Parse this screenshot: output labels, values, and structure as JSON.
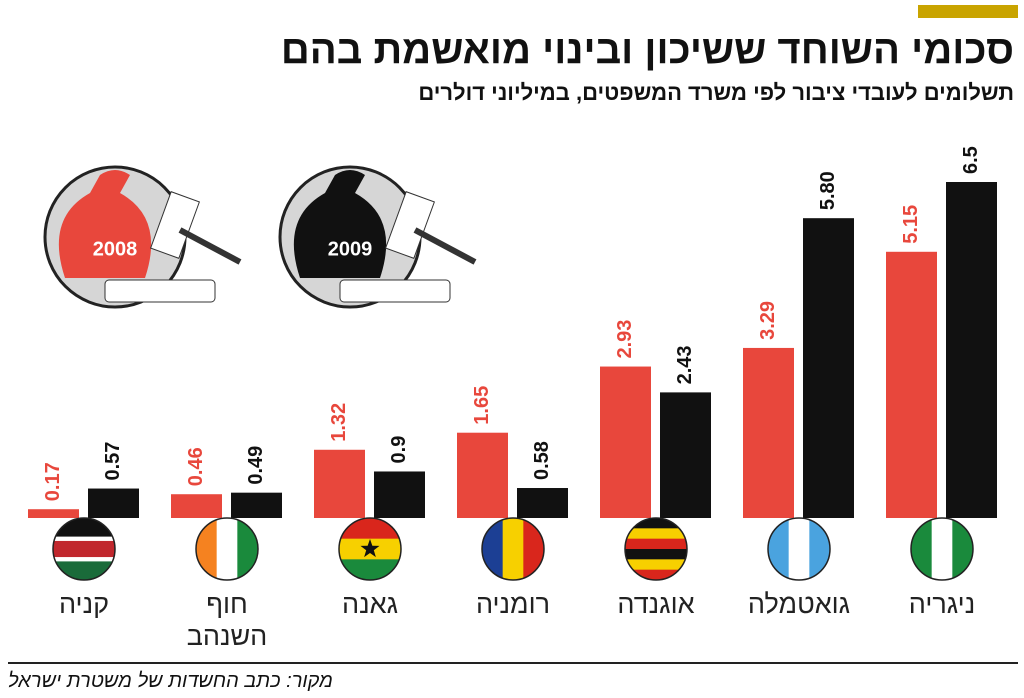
{
  "chart_data": {
    "type": "bar",
    "title": "סכומי השוחד ששיכון ובינוי מואשמת בהם",
    "subtitle": "תשלומים לעובדי ציבור לפי משרד המשפטים, במיליוני דולרים",
    "source": "מקור: כתב החשדות של משטרת ישראל",
    "categories": [
      "ניגריה",
      "גואטמלה",
      "אוגנדה",
      "רומניה",
      "גאנה",
      "חוף השנהב",
      "קניה"
    ],
    "series": [
      {
        "name": "2008",
        "color": "#e8473c",
        "values": [
          5.15,
          3.29,
          2.93,
          1.65,
          1.32,
          0.46,
          0.17
        ]
      },
      {
        "name": "2009",
        "color": "#111111",
        "values": [
          6.5,
          5.8,
          2.43,
          0.58,
          0.9,
          0.49,
          0.57
        ],
        "value_labels": [
          "6.5",
          "5.80",
          "2.43",
          "0.58",
          "0.9",
          "0.49",
          "0.57"
        ]
      }
    ]
  }
}
